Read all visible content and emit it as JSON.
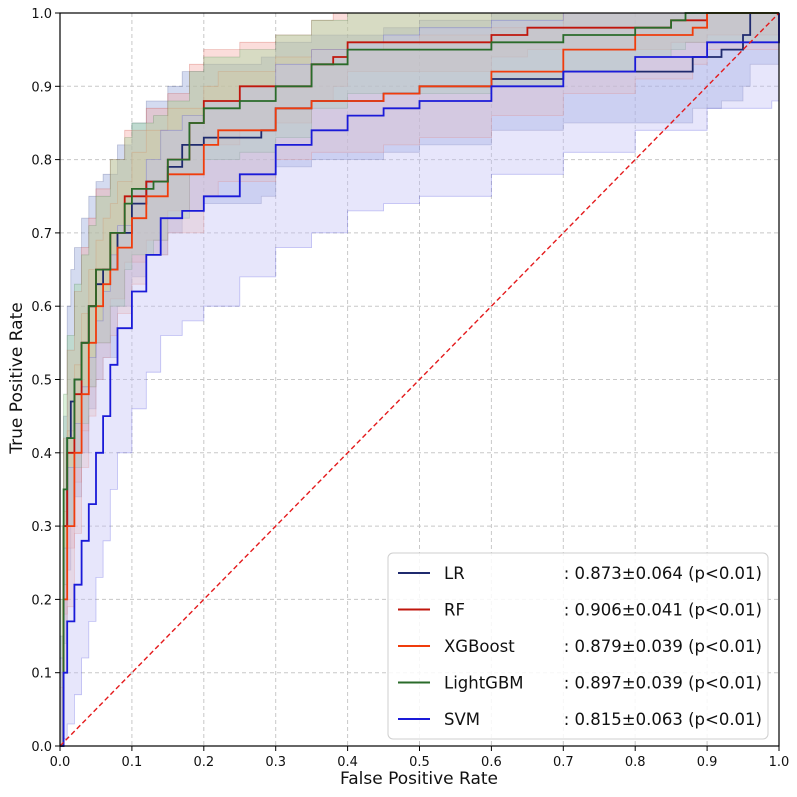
{
  "chart_data": {
    "type": "line",
    "title": "",
    "xlabel": "False Positive Rate",
    "ylabel": "True Positive Rate",
    "xlim": [
      0,
      1
    ],
    "ylim": [
      0,
      1
    ],
    "xticks": [
      "0.0",
      "0.1",
      "0.2",
      "0.3",
      "0.4",
      "0.5",
      "0.6",
      "0.7",
      "0.8",
      "0.9",
      "1.0"
    ],
    "yticks": [
      "0.0",
      "0.1",
      "0.2",
      "0.3",
      "0.4",
      "0.5",
      "0.6",
      "0.7",
      "0.8",
      "0.9",
      "1.0"
    ],
    "grid": true,
    "legend_position": "bottom-right",
    "reference_line": {
      "name": "chance",
      "x": [
        0,
        1
      ],
      "y": [
        0,
        1
      ],
      "color": "#e41a1c"
    },
    "series": [
      {
        "name": "LR",
        "stat": ": 0.873±0.064 (p<0.01)",
        "color": "#1f2a6e",
        "band": "#8fa0d8",
        "x": [
          0,
          0.005,
          0.01,
          0.015,
          0.02,
          0.03,
          0.04,
          0.05,
          0.06,
          0.08,
          0.1,
          0.12,
          0.15,
          0.17,
          0.2,
          0.25,
          0.28,
          0.3,
          0.35,
          0.4,
          0.45,
          0.5,
          0.6,
          0.7,
          0.8,
          0.88,
          0.92,
          0.95,
          0.96,
          1.0
        ],
        "y": [
          0,
          0.3,
          0.42,
          0.47,
          0.5,
          0.55,
          0.6,
          0.63,
          0.65,
          0.7,
          0.74,
          0.77,
          0.79,
          0.82,
          0.83,
          0.83,
          0.84,
          0.87,
          0.88,
          0.88,
          0.89,
          0.9,
          0.91,
          0.92,
          0.92,
          0.94,
          0.95,
          0.97,
          1.0,
          1.0
        ],
        "lower": [
          0,
          0.14,
          0.24,
          0.3,
          0.34,
          0.4,
          0.46,
          0.5,
          0.53,
          0.6,
          0.64,
          0.67,
          0.7,
          0.73,
          0.74,
          0.74,
          0.75,
          0.79,
          0.8,
          0.8,
          0.81,
          0.82,
          0.84,
          0.85,
          0.85,
          0.87,
          0.88,
          0.9,
          0.93,
          0.93
        ],
        "upper": [
          0.15,
          0.45,
          0.6,
          0.65,
          0.68,
          0.72,
          0.75,
          0.77,
          0.78,
          0.82,
          0.85,
          0.88,
          0.9,
          0.92,
          0.93,
          0.93,
          0.94,
          0.96,
          0.97,
          0.97,
          0.98,
          0.99,
          1.0,
          1.0,
          1.0,
          1.0,
          1.0,
          1.0,
          1.0,
          1.0
        ]
      },
      {
        "name": "RF",
        "stat": ": 0.906±0.041 (p<0.01)",
        "color": "#c0160c",
        "band": "#f4a6a0",
        "x": [
          0,
          0.005,
          0.01,
          0.02,
          0.03,
          0.04,
          0.05,
          0.07,
          0.09,
          0.12,
          0.15,
          0.18,
          0.2,
          0.25,
          0.3,
          0.35,
          0.38,
          0.4,
          0.45,
          0.5,
          0.6,
          0.65,
          0.7,
          0.8,
          0.85,
          0.9,
          1.0
        ],
        "y": [
          0,
          0.3,
          0.4,
          0.48,
          0.55,
          0.6,
          0.65,
          0.7,
          0.75,
          0.77,
          0.8,
          0.85,
          0.88,
          0.9,
          0.9,
          0.93,
          0.94,
          0.96,
          0.96,
          0.96,
          0.97,
          0.98,
          0.98,
          0.98,
          0.99,
          1.0,
          1.0
        ],
        "lower": [
          0,
          0.18,
          0.27,
          0.36,
          0.43,
          0.49,
          0.55,
          0.61,
          0.66,
          0.69,
          0.73,
          0.78,
          0.82,
          0.84,
          0.85,
          0.88,
          0.9,
          0.92,
          0.92,
          0.92,
          0.94,
          0.95,
          0.95,
          0.95,
          0.96,
          0.97,
          0.97
        ],
        "upper": [
          0.1,
          0.42,
          0.54,
          0.62,
          0.68,
          0.72,
          0.76,
          0.8,
          0.84,
          0.87,
          0.89,
          0.93,
          0.95,
          0.96,
          0.97,
          0.99,
          1.0,
          1.0,
          1.0,
          1.0,
          1.0,
          1.0,
          1.0,
          1.0,
          1.0,
          1.0,
          1.0
        ]
      },
      {
        "name": "XGBoost",
        "stat": ": 0.879±0.039 (p<0.01)",
        "color": "#f03c0c",
        "band": "#f8c0a8",
        "x": [
          0,
          0.005,
          0.01,
          0.02,
          0.03,
          0.04,
          0.05,
          0.06,
          0.07,
          0.08,
          0.1,
          0.12,
          0.15,
          0.2,
          0.22,
          0.27,
          0.3,
          0.35,
          0.4,
          0.45,
          0.5,
          0.6,
          0.7,
          0.8,
          0.88,
          0.9,
          1.0
        ],
        "y": [
          0,
          0.2,
          0.3,
          0.4,
          0.48,
          0.55,
          0.6,
          0.63,
          0.65,
          0.68,
          0.72,
          0.75,
          0.78,
          0.82,
          0.84,
          0.84,
          0.87,
          0.88,
          0.88,
          0.89,
          0.9,
          0.92,
          0.95,
          0.97,
          0.98,
          1.0,
          1.0
        ],
        "lower": [
          0,
          0.1,
          0.19,
          0.29,
          0.38,
          0.45,
          0.5,
          0.53,
          0.56,
          0.59,
          0.63,
          0.67,
          0.7,
          0.75,
          0.77,
          0.77,
          0.8,
          0.81,
          0.81,
          0.82,
          0.83,
          0.86,
          0.89,
          0.91,
          0.93,
          0.95,
          0.95
        ],
        "upper": [
          0.08,
          0.32,
          0.43,
          0.52,
          0.59,
          0.65,
          0.69,
          0.72,
          0.74,
          0.77,
          0.81,
          0.84,
          0.87,
          0.9,
          0.92,
          0.92,
          0.94,
          0.95,
          0.95,
          0.96,
          0.97,
          0.98,
          1.0,
          1.0,
          1.0,
          1.0,
          1.0
        ]
      },
      {
        "name": "LightGBM",
        "stat": ": 0.897±0.039 (p<0.01)",
        "color": "#2a6b2a",
        "band": "#9ed89a",
        "x": [
          0,
          0.005,
          0.01,
          0.02,
          0.03,
          0.04,
          0.05,
          0.07,
          0.09,
          0.1,
          0.13,
          0.15,
          0.18,
          0.2,
          0.25,
          0.3,
          0.35,
          0.4,
          0.45,
          0.5,
          0.6,
          0.7,
          0.8,
          0.85,
          0.87,
          1.0
        ],
        "y": [
          0,
          0.35,
          0.42,
          0.5,
          0.55,
          0.6,
          0.65,
          0.7,
          0.74,
          0.76,
          0.77,
          0.8,
          0.85,
          0.87,
          0.88,
          0.9,
          0.93,
          0.95,
          0.95,
          0.95,
          0.96,
          0.97,
          0.98,
          0.99,
          1.0,
          1.0
        ],
        "lower": [
          0,
          0.22,
          0.3,
          0.38,
          0.44,
          0.49,
          0.55,
          0.6,
          0.65,
          0.67,
          0.69,
          0.72,
          0.78,
          0.8,
          0.81,
          0.83,
          0.87,
          0.89,
          0.89,
          0.89,
          0.9,
          0.92,
          0.94,
          0.95,
          0.96,
          0.96
        ],
        "upper": [
          0.2,
          0.48,
          0.56,
          0.63,
          0.67,
          0.71,
          0.75,
          0.8,
          0.83,
          0.85,
          0.86,
          0.88,
          0.92,
          0.94,
          0.95,
          0.97,
          0.99,
          1.0,
          1.0,
          1.0,
          1.0,
          1.0,
          1.0,
          1.0,
          1.0,
          1.0
        ]
      },
      {
        "name": "SVM",
        "stat": ": 0.815±0.063 (p<0.01)",
        "color": "#1a1ad8",
        "band": "#c0bef5",
        "x": [
          0,
          0.005,
          0.01,
          0.02,
          0.03,
          0.04,
          0.05,
          0.06,
          0.07,
          0.08,
          0.1,
          0.12,
          0.14,
          0.17,
          0.2,
          0.25,
          0.3,
          0.35,
          0.4,
          0.45,
          0.5,
          0.6,
          0.7,
          0.8,
          0.9,
          0.99,
          1.0
        ],
        "y": [
          0,
          0.1,
          0.17,
          0.22,
          0.28,
          0.33,
          0.4,
          0.45,
          0.52,
          0.57,
          0.62,
          0.67,
          0.72,
          0.73,
          0.75,
          0.78,
          0.82,
          0.84,
          0.86,
          0.87,
          0.88,
          0.9,
          0.92,
          0.94,
          0.96,
          0.96,
          1.0
        ],
        "lower": [
          0,
          0.01,
          0.03,
          0.07,
          0.12,
          0.17,
          0.23,
          0.28,
          0.35,
          0.4,
          0.46,
          0.51,
          0.56,
          0.58,
          0.6,
          0.64,
          0.68,
          0.7,
          0.73,
          0.74,
          0.75,
          0.78,
          0.81,
          0.84,
          0.87,
          0.88,
          0.92
        ],
        "upper": [
          0.12,
          0.27,
          0.38,
          0.44,
          0.49,
          0.53,
          0.58,
          0.62,
          0.67,
          0.71,
          0.76,
          0.8,
          0.84,
          0.86,
          0.88,
          0.9,
          0.93,
          0.95,
          0.96,
          0.97,
          0.98,
          0.99,
          1.0,
          1.0,
          1.0,
          1.0,
          1.0
        ]
      }
    ]
  }
}
